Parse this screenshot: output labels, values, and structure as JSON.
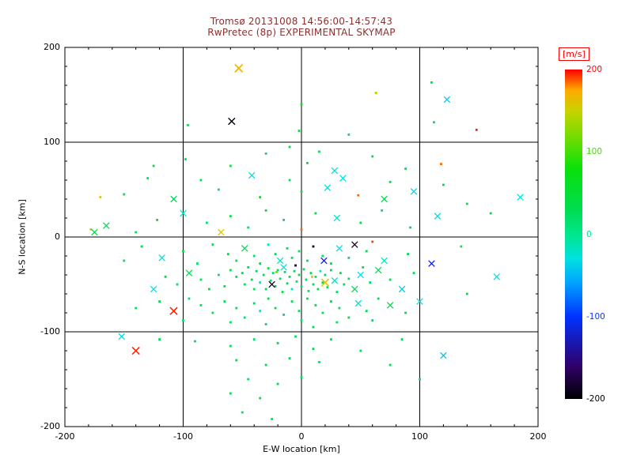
{
  "colors": {
    "title": "#8b3030",
    "axis": "#000000",
    "grid": "#000000",
    "background": "#ffffff",
    "colorbar_label": "#ff0000"
  },
  "chart_data": {
    "type": "scatter",
    "title": "Tromsø 20131008 14:56:00-14:57:43",
    "subtitle": "RwPretec (8p) EXPERIMENTAL SKYMAP",
    "xlabel": "E-W location [km]",
    "ylabel": "N-S location [km]",
    "xlim": [
      -200,
      200
    ],
    "ylim": [
      -200,
      200
    ],
    "x_ticks": [
      -200,
      -100,
      0,
      100,
      200
    ],
    "y_ticks": [
      -200,
      -100,
      0,
      100,
      200
    ],
    "grid_lines": [
      -100,
      0,
      100
    ],
    "grid": true,
    "colorbar": {
      "label": "[m/s]",
      "units": "m/s",
      "min": -200,
      "max": 200,
      "ticks": [
        200,
        100,
        0,
        -100,
        -200
      ],
      "stops": [
        {
          "v": -200,
          "c": "#000000"
        },
        {
          "v": -160,
          "c": "#30006a"
        },
        {
          "v": -100,
          "c": "#0032ff"
        },
        {
          "v": -60,
          "c": "#00a0ff"
        },
        {
          "v": -30,
          "c": "#00e1e1"
        },
        {
          "v": 0,
          "c": "#00e68c"
        },
        {
          "v": 30,
          "c": "#00dc50"
        },
        {
          "v": 80,
          "c": "#0ae10a"
        },
        {
          "v": 120,
          "c": "#78dc00"
        },
        {
          "v": 150,
          "c": "#c8d200"
        },
        {
          "v": 175,
          "c": "#ffaa00"
        },
        {
          "v": 200,
          "c": "#ff0000"
        }
      ]
    },
    "points_format": "[x_km, y_km, velocity_mps, marker d=dot x=cross, size_scale(optional)]",
    "points": [
      [
        -53,
        178,
        170,
        "x",
        1.3
      ],
      [
        0,
        140,
        60,
        "d"
      ],
      [
        -59,
        122,
        -195,
        "x",
        1.1
      ],
      [
        63,
        152,
        140,
        "d"
      ],
      [
        123,
        145,
        -40,
        "x"
      ],
      [
        148,
        113,
        195,
        "d"
      ],
      [
        110,
        163,
        40,
        "d"
      ],
      [
        112,
        121,
        30,
        "d"
      ],
      [
        -96,
        118,
        20,
        "d"
      ],
      [
        -2,
        112,
        50,
        "d"
      ],
      [
        40,
        108,
        25,
        "d"
      ],
      [
        -98,
        82,
        30,
        "d"
      ],
      [
        -60,
        75,
        45,
        "d"
      ],
      [
        -30,
        88,
        20,
        "d"
      ],
      [
        5,
        78,
        35,
        "d"
      ],
      [
        28,
        70,
        -20,
        "x"
      ],
      [
        60,
        85,
        30,
        "d"
      ],
      [
        88,
        72,
        25,
        "d"
      ],
      [
        118,
        77,
        185,
        "d"
      ],
      [
        -130,
        62,
        20,
        "d"
      ],
      [
        -85,
        60,
        40,
        "d"
      ],
      [
        -42,
        65,
        -25,
        "x"
      ],
      [
        -10,
        95,
        40,
        "d"
      ],
      [
        15,
        90,
        25,
        "d"
      ],
      [
        -125,
        75,
        30,
        "d"
      ],
      [
        -10,
        60,
        20,
        "d"
      ],
      [
        35,
        62,
        -30,
        "x"
      ],
      [
        75,
        58,
        35,
        "d"
      ],
      [
        -150,
        45,
        25,
        "d"
      ],
      [
        -108,
        40,
        30,
        "x"
      ],
      [
        -70,
        50,
        20,
        "d"
      ],
      [
        -35,
        42,
        60,
        "d"
      ],
      [
        0,
        48,
        30,
        "d"
      ],
      [
        22,
        52,
        -25,
        "x"
      ],
      [
        48,
        44,
        185,
        "d"
      ],
      [
        70,
        40,
        30,
        "x"
      ],
      [
        95,
        48,
        -35,
        "x"
      ],
      [
        140,
        35,
        25,
        "d"
      ],
      [
        185,
        42,
        -30,
        "x"
      ],
      [
        120,
        55,
        30,
        "d"
      ],
      [
        -170,
        42,
        160,
        "d"
      ],
      [
        -178,
        8,
        155,
        "d"
      ],
      [
        -165,
        12,
        30,
        "x"
      ],
      [
        -140,
        5,
        25,
        "d"
      ],
      [
        -122,
        18,
        40,
        "d"
      ],
      [
        -100,
        25,
        -20,
        "x"
      ],
      [
        -80,
        15,
        20,
        "d"
      ],
      [
        -60,
        22,
        35,
        "d"
      ],
      [
        -45,
        10,
        25,
        "d"
      ],
      [
        -30,
        28,
        45,
        "d"
      ],
      [
        -15,
        18,
        30,
        "d"
      ],
      [
        0,
        8,
        185,
        "d"
      ],
      [
        12,
        25,
        30,
        "d"
      ],
      [
        30,
        20,
        -25,
        "x"
      ],
      [
        50,
        15,
        35,
        "d"
      ],
      [
        68,
        28,
        20,
        "d"
      ],
      [
        92,
        10,
        30,
        "d"
      ],
      [
        115,
        22,
        -35,
        "x"
      ],
      [
        -68,
        5,
        160,
        "x"
      ],
      [
        160,
        25,
        40,
        "d"
      ],
      [
        -175,
        5,
        35,
        "x"
      ],
      [
        -150,
        -25,
        20,
        "d"
      ],
      [
        -135,
        -10,
        30,
        "d"
      ],
      [
        -118,
        -22,
        -25,
        "x"
      ],
      [
        -100,
        -15,
        35,
        "d"
      ],
      [
        -88,
        -28,
        20,
        "d"
      ],
      [
        -75,
        -8,
        30,
        "d"
      ],
      [
        -62,
        -18,
        40,
        "d"
      ],
      [
        -55,
        -25,
        25,
        "d"
      ],
      [
        -48,
        -12,
        30,
        "x"
      ],
      [
        -40,
        -20,
        20,
        "d"
      ],
      [
        -35,
        -28,
        35,
        "d"
      ],
      [
        -28,
        -8,
        -20,
        "d"
      ],
      [
        -22,
        -18,
        30,
        "d"
      ],
      [
        -18,
        -25,
        -20,
        "x"
      ],
      [
        -12,
        -12,
        30,
        "d"
      ],
      [
        -8,
        -22,
        25,
        "d"
      ],
      [
        -5,
        -30,
        -180,
        "d"
      ],
      [
        -2,
        -15,
        35,
        "d"
      ],
      [
        5,
        -25,
        30,
        "d"
      ],
      [
        10,
        -10,
        -185,
        "d"
      ],
      [
        18,
        -20,
        25,
        "d"
      ],
      [
        25,
        -28,
        30,
        "d"
      ],
      [
        32,
        -12,
        -30,
        "x"
      ],
      [
        40,
        -22,
        20,
        "d"
      ],
      [
        45,
        -8,
        -185,
        "x"
      ],
      [
        55,
        -15,
        35,
        "d"
      ],
      [
        60,
        -5,
        190,
        "d"
      ],
      [
        70,
        -25,
        -25,
        "x"
      ],
      [
        90,
        -18,
        30,
        "d"
      ],
      [
        110,
        -28,
        -120,
        "x"
      ],
      [
        135,
        -10,
        25,
        "d"
      ],
      [
        19,
        -25,
        -120,
        "x"
      ],
      [
        -60,
        -35,
        30,
        "d"
      ],
      [
        -55,
        -42,
        25,
        "d"
      ],
      [
        -50,
        -38,
        35,
        "d"
      ],
      [
        -48,
        -50,
        20,
        "d"
      ],
      [
        -45,
        -32,
        30,
        "d"
      ],
      [
        -42,
        -45,
        40,
        "d"
      ],
      [
        -40,
        -55,
        25,
        "d"
      ],
      [
        -38,
        -36,
        30,
        "d"
      ],
      [
        -35,
        -48,
        -20,
        "d"
      ],
      [
        -32,
        -40,
        35,
        "d"
      ],
      [
        -30,
        -55,
        30,
        "d"
      ],
      [
        -28,
        -33,
        25,
        "d"
      ],
      [
        -26,
        -46,
        30,
        "d"
      ],
      [
        -24,
        -38,
        20,
        "d"
      ],
      [
        -22,
        -52,
        35,
        "d"
      ],
      [
        -20,
        -35,
        30,
        "d"
      ],
      [
        -18,
        -44,
        25,
        "d"
      ],
      [
        -16,
        -58,
        30,
        "d"
      ],
      [
        -14,
        -37,
        20,
        "d"
      ],
      [
        -12,
        -49,
        35,
        "d"
      ],
      [
        -10,
        -42,
        30,
        "d"
      ],
      [
        -8,
        -55,
        -25,
        "d"
      ],
      [
        -6,
        -36,
        30,
        "d"
      ],
      [
        -4,
        -47,
        20,
        "d"
      ],
      [
        -2,
        -40,
        35,
        "d"
      ],
      [
        0,
        -52,
        30,
        "d"
      ],
      [
        2,
        -34,
        25,
        "d"
      ],
      [
        4,
        -45,
        30,
        "d"
      ],
      [
        6,
        -57,
        20,
        "d"
      ],
      [
        8,
        -38,
        35,
        "d"
      ],
      [
        10,
        -50,
        30,
        "d"
      ],
      [
        12,
        -42,
        25,
        "d"
      ],
      [
        14,
        -55,
        30,
        "d"
      ],
      [
        16,
        -36,
        -20,
        "d"
      ],
      [
        18,
        -48,
        35,
        "d"
      ],
      [
        20,
        -40,
        30,
        "d"
      ],
      [
        22,
        -53,
        25,
        "d"
      ],
      [
        25,
        -35,
        30,
        "d"
      ],
      [
        28,
        -46,
        -20,
        "x"
      ],
      [
        30,
        -58,
        20,
        "d"
      ],
      [
        33,
        -38,
        35,
        "d"
      ],
      [
        36,
        -50,
        30,
        "d"
      ],
      [
        -15,
        -32,
        -25,
        "x"
      ],
      [
        20,
        -48,
        160,
        "x",
        1.2
      ],
      [
        -25,
        -50,
        -190,
        "x"
      ],
      [
        -21,
        -37,
        120,
        "d"
      ],
      [
        9,
        -42,
        150,
        "d"
      ],
      [
        40,
        -44,
        25,
        "d"
      ],
      [
        45,
        -55,
        30,
        "x"
      ],
      [
        50,
        -40,
        -30,
        "x"
      ],
      [
        58,
        -48,
        20,
        "d"
      ],
      [
        65,
        -35,
        35,
        "x"
      ],
      [
        75,
        -45,
        30,
        "d"
      ],
      [
        85,
        -55,
        -40,
        "x"
      ],
      [
        95,
        -38,
        25,
        "d"
      ],
      [
        52,
        -32,
        40,
        "d"
      ],
      [
        -65,
        -52,
        30,
        "d"
      ],
      [
        -70,
        -40,
        20,
        "d"
      ],
      [
        -78,
        -55,
        35,
        "d"
      ],
      [
        -85,
        -45,
        25,
        "d"
      ],
      [
        -95,
        -38,
        30,
        "x"
      ],
      [
        -105,
        -50,
        20,
        "d"
      ],
      [
        -115,
        -42,
        35,
        "d"
      ],
      [
        -125,
        -55,
        -30,
        "x"
      ],
      [
        -140,
        -75,
        25,
        "d"
      ],
      [
        -120,
        -68,
        30,
        "d"
      ],
      [
        -108,
        -78,
        195,
        "x",
        1.2
      ],
      [
        -95,
        -65,
        20,
        "d"
      ],
      [
        -85,
        -72,
        30,
        "d"
      ],
      [
        -75,
        -80,
        25,
        "d"
      ],
      [
        -65,
        -68,
        35,
        "d"
      ],
      [
        -55,
        -75,
        30,
        "d"
      ],
      [
        -48,
        -85,
        20,
        "d"
      ],
      [
        -40,
        -70,
        30,
        "d"
      ],
      [
        -35,
        -78,
        -25,
        "d"
      ],
      [
        -28,
        -65,
        35,
        "d"
      ],
      [
        -22,
        -75,
        30,
        "d"
      ],
      [
        -15,
        -82,
        20,
        "d"
      ],
      [
        -8,
        -68,
        30,
        "d"
      ],
      [
        -2,
        -78,
        25,
        "d"
      ],
      [
        5,
        -65,
        30,
        "d"
      ],
      [
        12,
        -72,
        35,
        "d"
      ],
      [
        18,
        -80,
        25,
        "d"
      ],
      [
        25,
        -68,
        30,
        "d"
      ],
      [
        32,
        -75,
        20,
        "d"
      ],
      [
        40,
        -85,
        30,
        "d"
      ],
      [
        48,
        -70,
        -25,
        "x"
      ],
      [
        55,
        -78,
        30,
        "d"
      ],
      [
        65,
        -65,
        25,
        "d"
      ],
      [
        75,
        -72,
        35,
        "x"
      ],
      [
        88,
        -80,
        30,
        "d"
      ],
      [
        100,
        -68,
        -30,
        "x"
      ],
      [
        -60,
        -90,
        25,
        "d"
      ],
      [
        -30,
        -92,
        30,
        "d"
      ],
      [
        0,
        -88,
        20,
        "d"
      ],
      [
        30,
        -90,
        25,
        "d"
      ],
      [
        60,
        -88,
        30,
        "d"
      ],
      [
        10,
        -95,
        35,
        "d"
      ],
      [
        -100,
        -88,
        20,
        "d"
      ],
      [
        140,
        -60,
        30,
        "d"
      ],
      [
        165,
        -42,
        -30,
        "x"
      ],
      [
        -140,
        -120,
        195,
        "x",
        1.2
      ],
      [
        -90,
        -110,
        25,
        "d"
      ],
      [
        -60,
        -115,
        30,
        "d"
      ],
      [
        -40,
        -108,
        20,
        "d"
      ],
      [
        -20,
        -112,
        30,
        "d"
      ],
      [
        -5,
        -105,
        25,
        "d"
      ],
      [
        10,
        -118,
        30,
        "d"
      ],
      [
        25,
        -108,
        20,
        "d"
      ],
      [
        -55,
        -130,
        30,
        "d"
      ],
      [
        -30,
        -135,
        25,
        "d"
      ],
      [
        -10,
        -128,
        30,
        "d"
      ],
      [
        15,
        -132,
        20,
        "d"
      ],
      [
        -45,
        -150,
        25,
        "d"
      ],
      [
        -20,
        -155,
        30,
        "d"
      ],
      [
        0,
        -148,
        20,
        "d"
      ],
      [
        -60,
        -165,
        25,
        "d"
      ],
      [
        -35,
        -170,
        30,
        "d"
      ],
      [
        -50,
        -185,
        20,
        "d"
      ],
      [
        -25,
        -192,
        25,
        "d"
      ],
      [
        120,
        -125,
        -45,
        "x"
      ],
      [
        85,
        -108,
        30,
        "d"
      ],
      [
        50,
        -120,
        25,
        "d"
      ],
      [
        75,
        -135,
        30,
        "d"
      ],
      [
        100,
        -150,
        20,
        "d"
      ],
      [
        -120,
        -108,
        25,
        "d"
      ],
      [
        -152,
        -105,
        -35,
        "x"
      ]
    ]
  }
}
